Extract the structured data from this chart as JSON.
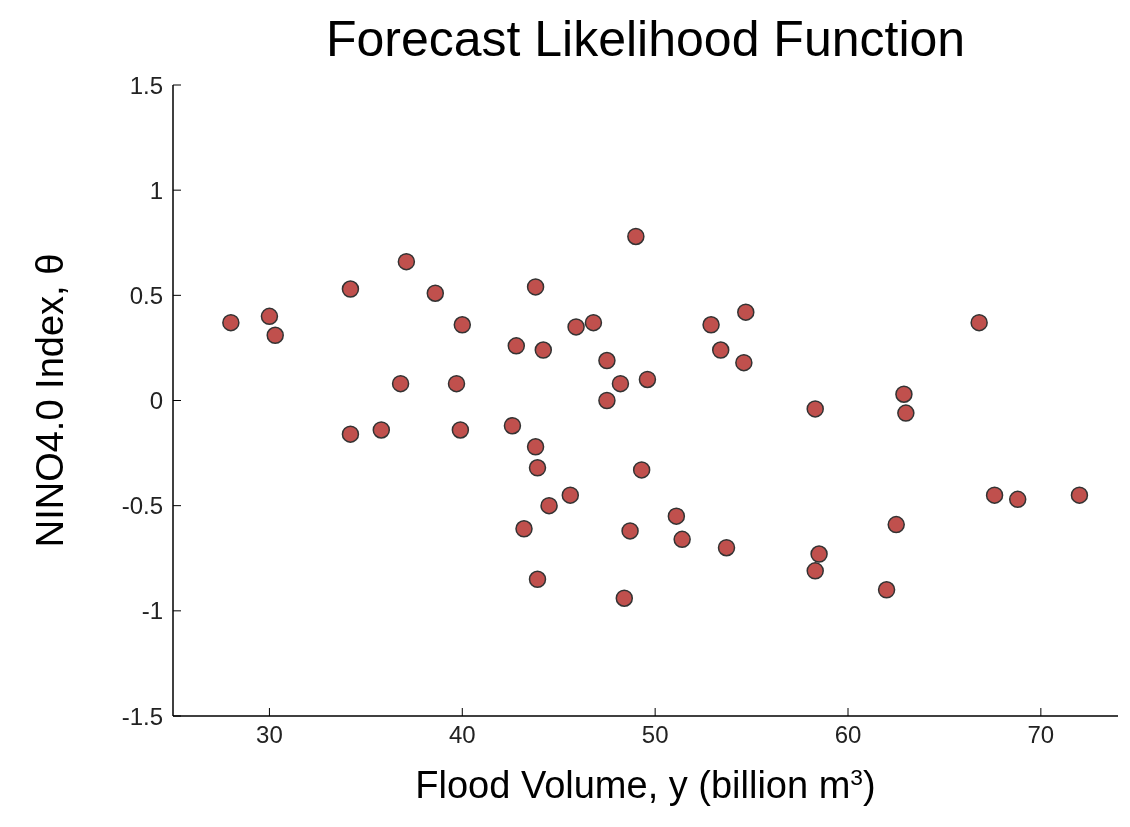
{
  "chart_data": {
    "type": "scatter",
    "title": "Forecast Likelihood Function",
    "xlabel": "Flood Volume, y (billion m$^{3}$)",
    "ylabel": "NINO4.0 Index, θ",
    "series": [
      {
        "color": "#c0504d",
        "x": [
          28.0,
          30.0,
          30.3,
          34.2,
          34.2,
          35.8,
          37.1,
          36.8,
          38.6,
          40.0,
          39.7,
          39.9,
          42.6,
          42.8,
          43.8,
          44.2,
          43.8,
          43.9,
          43.2,
          43.9,
          44.5,
          45.6,
          45.9,
          46.8,
          47.5,
          47.5,
          48.2,
          49.0,
          49.6,
          49.3,
          48.7,
          48.4,
          51.1,
          51.4,
          52.9,
          53.4,
          54.7,
          54.6,
          53.7,
          58.3,
          58.5,
          58.3,
          62.5,
          62.0,
          62.9,
          63.0,
          67.6,
          68.8,
          72.0,
          66.8
        ],
        "values": [
          0.37,
          0.4,
          0.31,
          0.53,
          -0.16,
          -0.14,
          0.66,
          0.08,
          0.51,
          0.36,
          0.08,
          -0.14,
          -0.12,
          0.26,
          0.54,
          0.24,
          -0.22,
          -0.32,
          -0.61,
          -0.85,
          -0.5,
          -0.45,
          0.35,
          0.37,
          0.19,
          0.0,
          0.08,
          0.78,
          0.1,
          -0.33,
          -0.62,
          -0.94,
          -0.55,
          -0.66,
          0.36,
          0.24,
          0.42,
          0.18,
          -0.7,
          -0.04,
          -0.73,
          -0.81,
          -0.59,
          -0.9,
          0.03,
          -0.06,
          -0.45,
          -0.47,
          -0.45,
          0.37
        ]
      }
    ],
    "xlim": [
      25,
      74
    ],
    "xticks": [
      30,
      40,
      50,
      60,
      70
    ],
    "ylim": [
      -1.5,
      1.5
    ],
    "yticks": [
      -1.5,
      -1,
      -0.5,
      0,
      0.5,
      1,
      1.5
    ],
    "marker": "circle",
    "grid": false,
    "legend": false
  }
}
